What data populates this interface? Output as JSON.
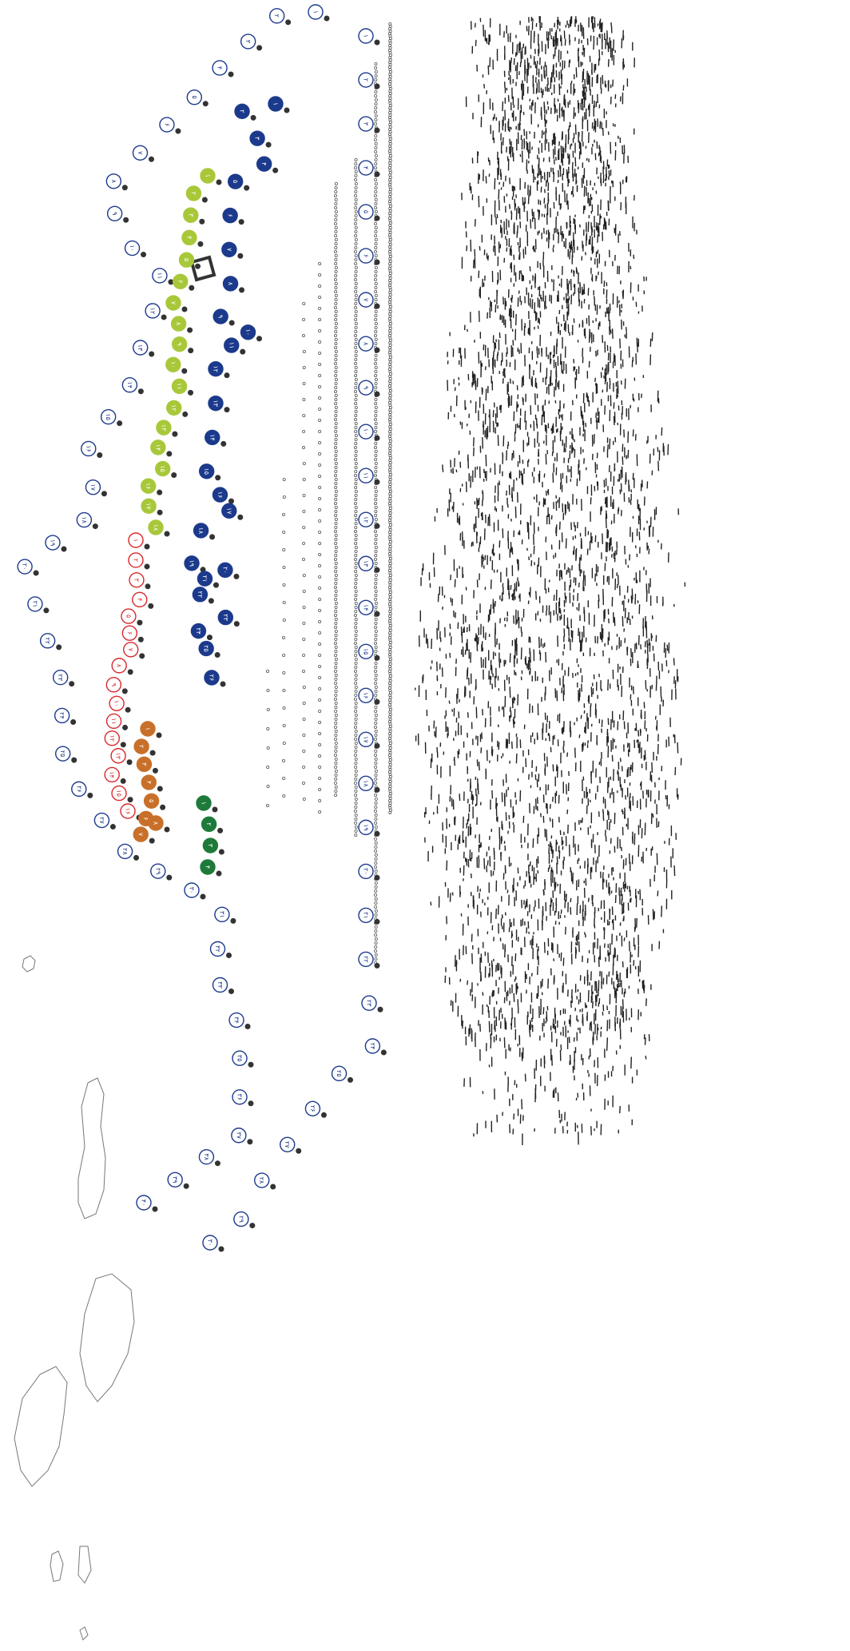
{
  "markers": [
    {
      "style": "outline",
      "color": "#1c3a8c",
      "labels": [
        "۱",
        "۲",
        "۳",
        "۴",
        "۵",
        "۶",
        "۷",
        "۸",
        "۹",
        "۱۰",
        "۱۱",
        "۱۲",
        "۱۳",
        "۱۴",
        "۱۵",
        "۱۶",
        "۱۷",
        "۱۸",
        "۱۹",
        "۲۰",
        "۲۱",
        "۲۲",
        "۲۳",
        "۲۴",
        "۲۵",
        "۲۶",
        "۲۷",
        "۲۸",
        "۲۹",
        "۳۰",
        "۳۱",
        "۳۲",
        "۳۳",
        "۳۴",
        "۳۵",
        "۳۶",
        "۳۷",
        "۳۸",
        "۳۹",
        "۴۰"
      ]
    },
    {
      "style": "filled",
      "color": "#1c3a8c",
      "labels": [
        "۱",
        "۲",
        "۳",
        "۴",
        "۵",
        "۶",
        "۷",
        "۸",
        "۹",
        "۱۰",
        "۱۱",
        "۱۲",
        "۱۳",
        "۱۴",
        "۱۵",
        "۱۶",
        "۱۷",
        "۱۸",
        "۱۹",
        "۲۰",
        "۲۱",
        "۲۲",
        "۲۳",
        "۲۴",
        "۲۵",
        "۲۶"
      ]
    },
    {
      "style": "filled",
      "color": "#a8c83a",
      "labels": [
        "۱",
        "۲",
        "۳",
        "۴",
        "۵",
        "۶",
        "۷",
        "۸",
        "۹",
        "۱۰",
        "۱۱",
        "۱۲",
        "۱۳",
        "۱۴",
        "۱۵",
        "۱۶",
        "۱۷",
        "۱۸"
      ]
    },
    {
      "style": "outline",
      "color": "#d8282c",
      "labels": [
        "۱",
        "۲",
        "۳",
        "۴",
        "۵",
        "۶",
        "۷",
        "۸",
        "۹",
        "۱۰",
        "۱۱",
        "۱۲",
        "۱۳",
        "۱۴",
        "۱۵",
        "۱۶"
      ]
    },
    {
      "style": "filled",
      "color": "#c8702a",
      "labels": [
        "۱",
        "۲",
        "۳",
        "۴",
        "۵",
        "۶",
        "۷",
        "۸"
      ]
    },
    {
      "style": "filled",
      "color": "#1e7a3a",
      "labels": [
        "۱",
        "۲",
        "۳",
        "۴"
      ]
    },
    {
      "style": "outline",
      "color": "#1c3a8c",
      "labels": [
        "۱",
        "۲",
        "۳",
        "۴",
        "۵",
        "۶",
        "۷",
        "۸",
        "۹",
        "۱۰",
        "۱۱",
        "۱۲",
        "۱۳",
        "۱۴",
        "۱۵",
        "۱۶",
        "۱۷",
        "۱۸",
        "۱۹",
        "۲۰",
        "۲۱",
        "۲۲",
        "۲۳",
        "۲۴",
        "۲۵",
        "۲۶",
        "۲۷",
        "۲۸",
        "۲۹",
        "۳۰"
      ]
    }
  ]
}
